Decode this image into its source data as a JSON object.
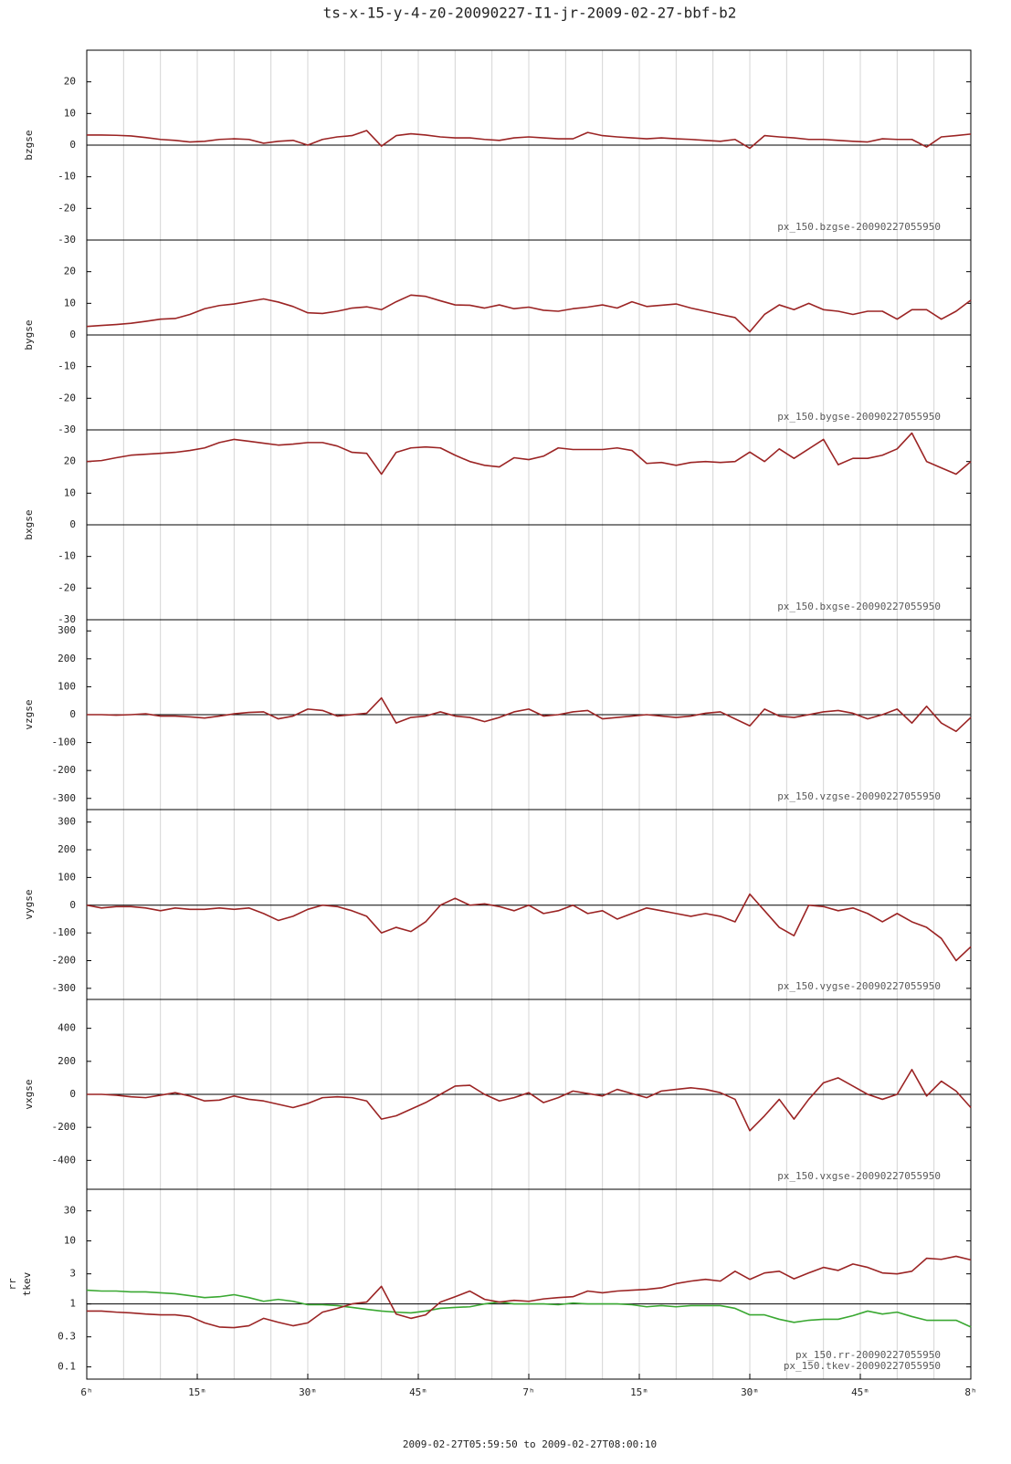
{
  "title": "ts-x-15-y-4-z0-20090227-I1-jr-2009-02-27-bbf-b2",
  "x_axis": {
    "xlim": [
      0,
      120
    ],
    "xticks": [
      {
        "value": 0,
        "label": "6ʰ"
      },
      {
        "value": 15,
        "label": "15ᵐ"
      },
      {
        "value": 30,
        "label": "30ᵐ"
      },
      {
        "value": 45,
        "label": "45ᵐ"
      },
      {
        "value": 60,
        "label": "7ʰ"
      },
      {
        "value": 75,
        "label": "15ᵐ"
      },
      {
        "value": 90,
        "label": "30ᵐ"
      },
      {
        "value": 105,
        "label": "45ᵐ"
      },
      {
        "value": 120,
        "label": "8ʰ"
      }
    ],
    "xminorticks": [
      0,
      5,
      10,
      15,
      20,
      25,
      30,
      35,
      40,
      45,
      50,
      55,
      60,
      65,
      70,
      75,
      80,
      85,
      90,
      95,
      100,
      105,
      110,
      115,
      120
    ],
    "label": "2009-02-27T05:59:50 to 2009-02-27T08:00:10"
  },
  "chart_data": [
    {
      "type": "line",
      "ylabel": "bzgse",
      "ylim": [
        -30,
        30
      ],
      "yticks": [
        20,
        10,
        0,
        -10,
        -20,
        -30
      ],
      "x": [
        0,
        2,
        4,
        6,
        8,
        10,
        12,
        14,
        16,
        18,
        20,
        22,
        24,
        26,
        28,
        30,
        32,
        34,
        36,
        38,
        40,
        42,
        44,
        46,
        48,
        50,
        52,
        54,
        56,
        58,
        60,
        62,
        64,
        66,
        68,
        70,
        72,
        74,
        76,
        78,
        80,
        82,
        84,
        86,
        88,
        90,
        92,
        94,
        96,
        98,
        100,
        102,
        104,
        106,
        108,
        110,
        112,
        114,
        116,
        118,
        120
      ],
      "series": [
        {
          "name": "px_150.bzgse-20090227055950",
          "color": "#9b2424",
          "values": [
            3.2,
            3.2,
            3.1,
            2.9,
            2.4,
            1.8,
            1.5,
            1.0,
            1.2,
            1.8,
            2.0,
            1.8,
            0.6,
            1.2,
            1.5,
            0,
            1.8,
            2.6,
            3.0,
            4.6,
            -0.3,
            3.0,
            3.6,
            3.2,
            2.6,
            2.3,
            2.3,
            1.8,
            1.5,
            2.3,
            2.6,
            2.3,
            2.0,
            2.0,
            4.0,
            3.0,
            2.6,
            2.3,
            2.0,
            2.3,
            2.0,
            1.8,
            1.5,
            1.2,
            1.8,
            -1.0,
            3.0,
            2.6,
            2.3,
            1.8,
            1.8,
            1.5,
            1.2,
            1.0,
            2.0,
            1.8,
            1.8,
            -0.6,
            2.6,
            3.0,
            3.5
          ]
        }
      ]
    },
    {
      "type": "line",
      "ylabel": "bygse",
      "ylim": [
        -30,
        30
      ],
      "yticks": [
        20,
        10,
        0,
        -10,
        -20,
        -30
      ],
      "x": [
        0,
        2,
        4,
        6,
        8,
        10,
        12,
        14,
        16,
        18,
        20,
        22,
        24,
        26,
        28,
        30,
        32,
        34,
        36,
        38,
        40,
        42,
        44,
        46,
        48,
        50,
        52,
        54,
        56,
        58,
        60,
        62,
        64,
        66,
        68,
        70,
        72,
        74,
        76,
        78,
        80,
        82,
        84,
        86,
        88,
        90,
        92,
        94,
        96,
        98,
        100,
        102,
        104,
        106,
        108,
        110,
        112,
        114,
        116,
        118,
        120
      ],
      "series": [
        {
          "name": "px_150.bygse-20090227055950",
          "color": "#9b2424",
          "values": [
            2.7,
            3.0,
            3.3,
            3.7,
            4.3,
            5.0,
            5.2,
            6.5,
            8.3,
            9.3,
            9.8,
            10.6,
            11.4,
            10.4,
            9.0,
            7.0,
            6.8,
            7.5,
            8.5,
            8.9,
            8.0,
            10.5,
            12.6,
            12.2,
            10.8,
            9.5,
            9.4,
            8.5,
            9.5,
            8.3,
            8.8,
            7.8,
            7.5,
            8.3,
            8.8,
            9.5,
            8.5,
            10.5,
            9.0,
            9.4,
            9.8,
            8.5,
            7.5,
            6.5,
            5.5,
            1.0,
            6.5,
            9.5,
            8.0,
            10.0,
            8.0,
            7.5,
            6.5,
            7.5,
            7.5,
            5.0,
            8.0,
            8.0,
            5.0,
            7.5,
            11.0
          ]
        }
      ]
    },
    {
      "type": "line",
      "ylabel": "bxgse",
      "ylim": [
        -30,
        30
      ],
      "yticks": [
        20,
        10,
        0,
        -10,
        -20,
        -30
      ],
      "x": [
        0,
        2,
        4,
        6,
        8,
        10,
        12,
        14,
        16,
        18,
        20,
        22,
        24,
        26,
        28,
        30,
        32,
        34,
        36,
        38,
        40,
        42,
        44,
        46,
        48,
        50,
        52,
        54,
        56,
        58,
        60,
        62,
        64,
        66,
        68,
        70,
        72,
        74,
        76,
        78,
        80,
        82,
        84,
        86,
        88,
        90,
        92,
        94,
        96,
        98,
        100,
        102,
        104,
        106,
        108,
        110,
        112,
        114,
        116,
        118,
        120
      ],
      "series": [
        {
          "name": "px_150.bxgse-20090227055950",
          "color": "#9b2424",
          "values": [
            20,
            20.3,
            21.2,
            22,
            22.3,
            22.6,
            22.9,
            23.5,
            24.3,
            26,
            27,
            26.4,
            25.8,
            25.2,
            25.5,
            26,
            26,
            24.9,
            22.9,
            22.6,
            16,
            22.9,
            24.3,
            24.6,
            24.3,
            22,
            20,
            18.8,
            18.3,
            21.2,
            20.6,
            21.7,
            24.3,
            23.8,
            23.8,
            23.8,
            24.3,
            23.5,
            19.4,
            19.7,
            18.8,
            19.7,
            20,
            19.7,
            20,
            23,
            20,
            24,
            21,
            24,
            27,
            19,
            21,
            21,
            22,
            24,
            29,
            20,
            18,
            16,
            20
          ]
        }
      ]
    },
    {
      "type": "line",
      "ylabel": "vzgse",
      "ylim": [
        -340,
        340
      ],
      "yticks": [
        300,
        200,
        100,
        0,
        -100,
        -200,
        -300
      ],
      "x": [
        0,
        2,
        4,
        6,
        8,
        10,
        12,
        14,
        16,
        18,
        20,
        22,
        24,
        26,
        28,
        30,
        32,
        34,
        36,
        38,
        40,
        42,
        44,
        46,
        48,
        50,
        52,
        54,
        56,
        58,
        60,
        62,
        64,
        66,
        68,
        70,
        72,
        74,
        76,
        78,
        80,
        82,
        84,
        86,
        88,
        90,
        92,
        94,
        96,
        98,
        100,
        102,
        104,
        106,
        108,
        110,
        112,
        114,
        116,
        118,
        120
      ],
      "series": [
        {
          "name": "px_150.vzgse-20090227055950",
          "color": "#9b2424",
          "values": [
            0,
            0,
            -2,
            0,
            3,
            -5,
            -5,
            -8,
            -12,
            -5,
            3,
            8,
            10,
            -15,
            -5,
            20,
            15,
            -5,
            0,
            5,
            60,
            -30,
            -10,
            -5,
            10,
            -5,
            -10,
            -25,
            -10,
            10,
            20,
            -5,
            0,
            10,
            15,
            -15,
            -10,
            -5,
            0,
            -5,
            -10,
            -5,
            5,
            10,
            -15,
            -40,
            20,
            -5,
            -10,
            0,
            10,
            15,
            5,
            -15,
            0,
            20,
            -30,
            30,
            -30,
            -60,
            -10
          ]
        }
      ]
    },
    {
      "type": "line",
      "ylabel": "vygse",
      "ylim": [
        -340,
        345
      ],
      "yticks": [
        300,
        200,
        100,
        0,
        -100,
        -200,
        -300
      ],
      "x": [
        0,
        2,
        4,
        6,
        8,
        10,
        12,
        14,
        16,
        18,
        20,
        22,
        24,
        26,
        28,
        30,
        32,
        34,
        36,
        38,
        40,
        42,
        44,
        46,
        48,
        50,
        52,
        54,
        56,
        58,
        60,
        62,
        64,
        66,
        68,
        70,
        72,
        74,
        76,
        78,
        80,
        82,
        84,
        86,
        88,
        90,
        92,
        94,
        96,
        98,
        100,
        102,
        104,
        106,
        108,
        110,
        112,
        114,
        116,
        118,
        120
      ],
      "series": [
        {
          "name": "px_150.vygse-20090227055950",
          "color": "#9b2424",
          "values": [
            0,
            -10,
            -5,
            -5,
            -10,
            -20,
            -10,
            -15,
            -15,
            -10,
            -15,
            -10,
            -30,
            -55,
            -40,
            -15,
            0,
            -5,
            -20,
            -40,
            -100,
            -80,
            -95,
            -60,
            0,
            25,
            0,
            5,
            -5,
            -20,
            0,
            -30,
            -20,
            0,
            -30,
            -20,
            -50,
            -30,
            -10,
            -20,
            -30,
            -40,
            -30,
            -40,
            -60,
            40,
            -20,
            -80,
            -110,
            0,
            -5,
            -20,
            -10,
            -30,
            -60,
            -30,
            -60,
            -80,
            -120,
            -200,
            -150
          ]
        }
      ]
    },
    {
      "type": "line",
      "ylabel": "vxgse",
      "ylim": [
        -575,
        575
      ],
      "yticks": [
        400,
        200,
        0,
        -200,
        -400
      ],
      "x": [
        0,
        2,
        4,
        6,
        8,
        10,
        12,
        14,
        16,
        18,
        20,
        22,
        24,
        26,
        28,
        30,
        32,
        34,
        36,
        38,
        40,
        42,
        44,
        46,
        48,
        50,
        52,
        54,
        56,
        58,
        60,
        62,
        64,
        66,
        68,
        70,
        72,
        74,
        76,
        78,
        80,
        82,
        84,
        86,
        88,
        90,
        92,
        94,
        96,
        98,
        100,
        102,
        104,
        106,
        108,
        110,
        112,
        114,
        116,
        118,
        120
      ],
      "series": [
        {
          "name": "px_150.vxgse-20090227055950",
          "color": "#9b2424",
          "values": [
            0,
            0,
            -5,
            -15,
            -20,
            -5,
            10,
            -10,
            -40,
            -35,
            -10,
            -30,
            -40,
            -60,
            -80,
            -55,
            -20,
            -15,
            -20,
            -40,
            -150,
            -130,
            -90,
            -50,
            0,
            50,
            55,
            0,
            -40,
            -20,
            10,
            -50,
            -20,
            20,
            5,
            -10,
            30,
            5,
            -20,
            20,
            30,
            40,
            30,
            10,
            -30,
            -220,
            -130,
            -30,
            -150,
            -30,
            70,
            100,
            50,
            0,
            -30,
            0,
            150,
            -10,
            80,
            20,
            -80
          ]
        }
      ]
    },
    {
      "type": "line",
      "ylabel": [
        "rr",
        "tkev"
      ],
      "log_y": true,
      "ylim": [
        0.064,
        66
      ],
      "yticks": [
        30,
        10,
        3,
        1,
        0.3,
        0.1
      ],
      "x": [
        0,
        2,
        4,
        6,
        8,
        10,
        12,
        14,
        16,
        18,
        20,
        22,
        24,
        26,
        28,
        30,
        32,
        34,
        36,
        38,
        40,
        42,
        44,
        46,
        48,
        50,
        52,
        54,
        56,
        58,
        60,
        62,
        64,
        66,
        68,
        70,
        72,
        74,
        76,
        78,
        80,
        82,
        84,
        86,
        88,
        90,
        92,
        94,
        96,
        98,
        100,
        102,
        104,
        106,
        108,
        110,
        112,
        114,
        116,
        118,
        120
      ],
      "series": [
        {
          "name": "px_150.rr-20090227055950",
          "color": "#3aa832",
          "values": [
            1.65,
            1.6,
            1.6,
            1.55,
            1.55,
            1.5,
            1.45,
            1.35,
            1.26,
            1.3,
            1.4,
            1.26,
            1.1,
            1.18,
            1.1,
            0.97,
            0.97,
            0.94,
            0.88,
            0.82,
            0.77,
            0.74,
            0.72,
            0.77,
            0.85,
            0.88,
            0.9,
            1,
            1.07,
            1,
            1,
            1,
            0.97,
            1.03,
            1,
            1,
            1,
            0.97,
            0.9,
            0.94,
            0.9,
            0.94,
            0.94,
            0.94,
            0.85,
            0.67,
            0.67,
            0.57,
            0.51,
            0.55,
            0.57,
            0.57,
            0.65,
            0.77,
            0.69,
            0.74,
            0.63,
            0.55,
            0.55,
            0.55,
            0.43
          ]
        },
        {
          "name": "px_150.tkev-20090227055950",
          "color": "#9b2424",
          "values": [
            0.77,
            0.77,
            0.74,
            0.72,
            0.69,
            0.67,
            0.67,
            0.63,
            0.5,
            0.43,
            0.42,
            0.45,
            0.59,
            0.51,
            0.45,
            0.5,
            0.74,
            0.85,
            1,
            1.07,
            1.9,
            0.69,
            0.59,
            0.67,
            1.07,
            1.3,
            1.6,
            1.18,
            1.07,
            1.14,
            1.1,
            1.2,
            1.26,
            1.3,
            1.6,
            1.5,
            1.6,
            1.65,
            1.7,
            1.8,
            2.1,
            2.3,
            2.45,
            2.3,
            3.3,
            2.45,
            3.1,
            3.3,
            2.5,
            3.1,
            3.8,
            3.4,
            4.3,
            3.8,
            3.1,
            3,
            3.3,
            5.3,
            5.1,
            5.7,
            5
          ]
        }
      ]
    }
  ]
}
